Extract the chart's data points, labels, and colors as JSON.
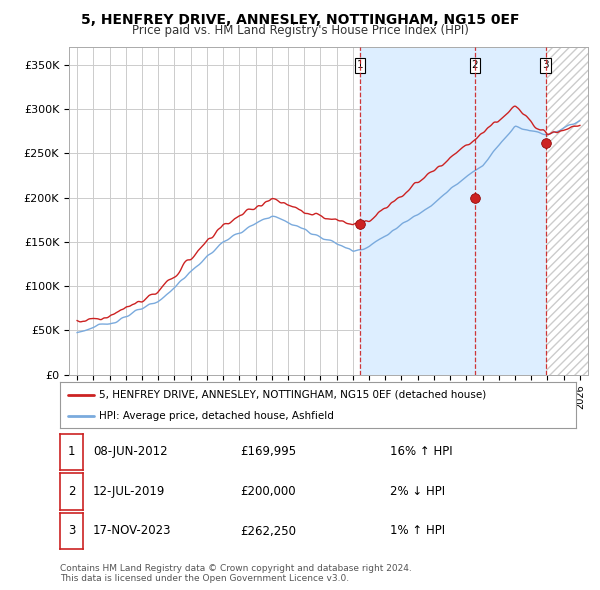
{
  "title": "5, HENFREY DRIVE, ANNESLEY, NOTTINGHAM, NG15 0EF",
  "subtitle": "Price paid vs. HM Land Registry's House Price Index (HPI)",
  "ylabel_ticks": [
    "£0",
    "£50K",
    "£100K",
    "£150K",
    "£200K",
    "£250K",
    "£300K",
    "£350K"
  ],
  "ytick_values": [
    0,
    50000,
    100000,
    150000,
    200000,
    250000,
    300000,
    350000
  ],
  "ylim": [
    0,
    370000
  ],
  "xlim_start": 1994.5,
  "xlim_end": 2026.5,
  "bg_color": "#ffffff",
  "plot_bg": "#ffffff",
  "grid_color": "#cccccc",
  "hpi_color": "#7aaadd",
  "price_color": "#cc2222",
  "sale1_x": 2012.44,
  "sale1_y": 169995,
  "sale2_x": 2019.53,
  "sale2_y": 200000,
  "sale3_x": 2023.88,
  "sale3_y": 262250,
  "shade_color": "#ddeeff",
  "hatch_color": "#cccccc",
  "vline_color": "#cc2222",
  "legend_house": "5, HENFREY DRIVE, ANNESLEY, NOTTINGHAM, NG15 0EF (detached house)",
  "legend_hpi": "HPI: Average price, detached house, Ashfield",
  "table_rows": [
    [
      "1",
      "08-JUN-2012",
      "£169,995",
      "16% ↑ HPI"
    ],
    [
      "2",
      "12-JUL-2019",
      "£200,000",
      "2% ↓ HPI"
    ],
    [
      "3",
      "17-NOV-2023",
      "£262,250",
      "1% ↑ HPI"
    ]
  ],
  "footer": "Contains HM Land Registry data © Crown copyright and database right 2024.\nThis data is licensed under the Open Government Licence v3.0.",
  "title_fontsize": 10,
  "subtitle_fontsize": 8.5,
  "figsize": [
    6.0,
    5.9
  ],
  "dpi": 100
}
